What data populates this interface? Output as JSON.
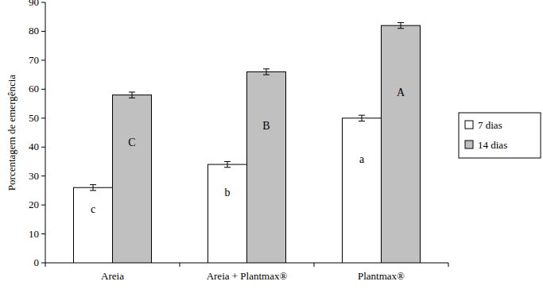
{
  "chart_data": {
    "type": "bar",
    "y_label": "Porcentagem de emergência",
    "categories": [
      "Areia",
      "Areia + Plantmax®",
      "Plantmax®"
    ],
    "series": [
      {
        "name": "7 dias",
        "color": "#ffffff",
        "values": [
          26,
          34,
          50
        ],
        "errors": [
          1,
          1,
          1
        ],
        "annotations": [
          "c",
          "b",
          "a"
        ]
      },
      {
        "name": "14 dias",
        "color": "#c0c0c0",
        "values": [
          58,
          66,
          82
        ],
        "errors": [
          1,
          1,
          1
        ],
        "annotations": [
          "C",
          "B",
          "A"
        ]
      }
    ],
    "ylim": [
      0,
      90
    ],
    "yticks": [
      0,
      10,
      20,
      30,
      40,
      50,
      60,
      70,
      80,
      90
    ],
    "grid": false,
    "legend": "right"
  }
}
